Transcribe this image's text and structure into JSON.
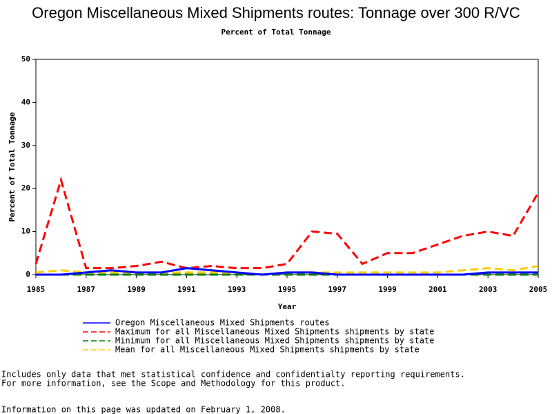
{
  "chart_data": {
    "type": "line",
    "title": "Oregon Miscellaneous Mixed Shipments routes: Tonnage over 300 R/VC",
    "subtitle": "Percent of Total Tonnage",
    "x_label": "Year",
    "y_label": "Percent of Total Tonnage",
    "x": [
      1985,
      1986,
      1987,
      1988,
      1989,
      1990,
      1991,
      1992,
      1993,
      1994,
      1995,
      1996,
      1997,
      1998,
      1999,
      2000,
      2001,
      2002,
      2003,
      2004,
      2005
    ],
    "xlim": [
      1985,
      2005
    ],
    "xticks": [
      1985,
      1987,
      1989,
      1991,
      1993,
      1995,
      1997,
      1999,
      2001,
      2003,
      2005
    ],
    "ylim": [
      0,
      50
    ],
    "yticks": [
      0,
      10,
      20,
      30,
      40,
      50
    ],
    "grid": false,
    "series": [
      {
        "name": "Oregon Miscellaneous Mixed Shipments routes",
        "color": "#0000ff",
        "dashed": false,
        "values": [
          0,
          0,
          0.5,
          1,
          0.5,
          0.5,
          1.5,
          1,
          0.5,
          0,
          0.5,
          0.5,
          0,
          0,
          0,
          0,
          0,
          0,
          0.5,
          0.5,
          0.5
        ]
      },
      {
        "name": "Maximum for all Miscellaneous Mixed Shipments shipments by state",
        "color": "#ff0000",
        "dashed": true,
        "values": [
          2.5,
          22,
          1.5,
          1.5,
          2,
          3,
          1.5,
          2,
          1.5,
          1.5,
          2.5,
          10,
          9.5,
          2.5,
          5,
          5,
          7,
          9,
          10,
          9,
          19
        ]
      },
      {
        "name": "Minimum for all Miscellaneous Mixed Shipments shipments by state",
        "color": "#008000",
        "dashed": true,
        "values": [
          0,
          0,
          0,
          0,
          0,
          0,
          0,
          0,
          0,
          0,
          0,
          0,
          0,
          0,
          0,
          0,
          0,
          0,
          0,
          0,
          0
        ]
      },
      {
        "name": "Mean for all Miscellaneous Mixed Shipments shipments by state",
        "color": "#ffcc00",
        "dashed": true,
        "values": [
          0.5,
          1,
          0.5,
          0.5,
          0.5,
          0.5,
          0.5,
          0.5,
          0.5,
          0,
          0.5,
          0.5,
          0.5,
          0.5,
          0.5,
          0.5,
          0.5,
          1,
          1.5,
          1,
          2
        ]
      }
    ],
    "notes": [
      "Includes only data that met statistical confidence and confidentialty reporting requirements.",
      "For more information, see the Scope and Methodology for this product.",
      "Information on this page was updated on February 1, 2008."
    ]
  }
}
